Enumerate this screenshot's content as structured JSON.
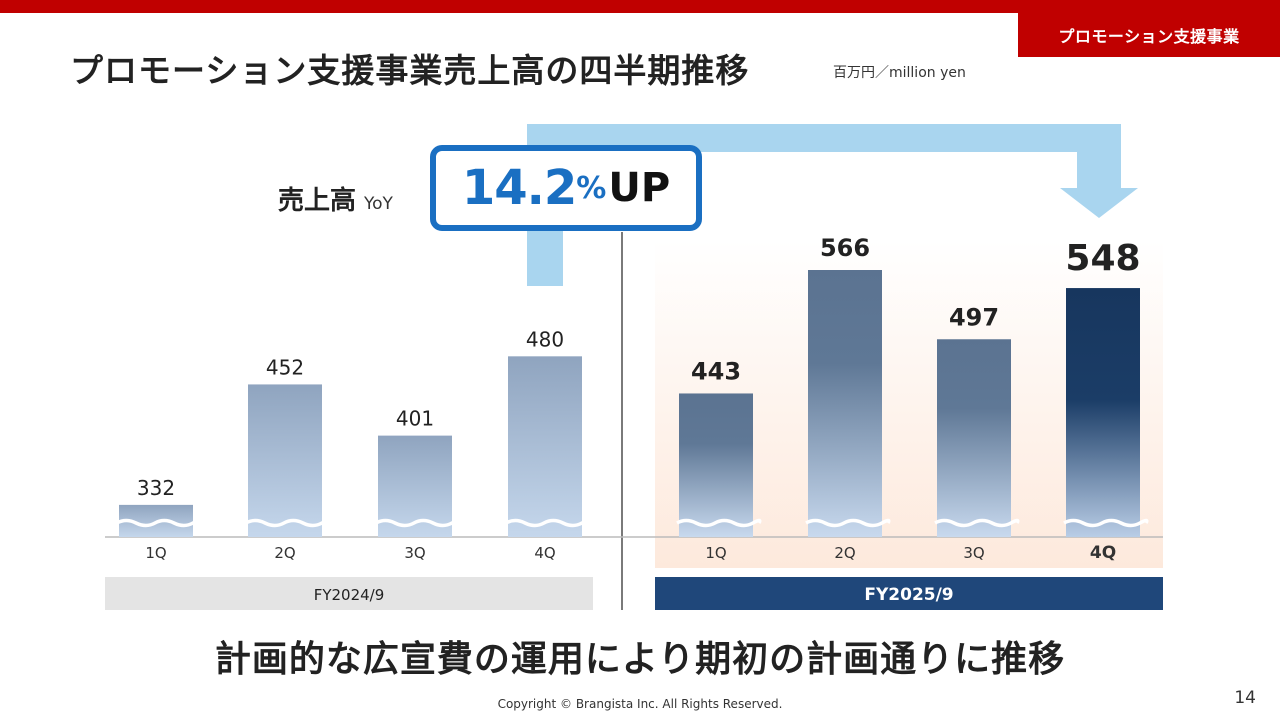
{
  "header": {
    "section_tag": "プロモーション支援事業",
    "title": "プロモーション支援事業売上高の四半期推移",
    "unit": "百万円／million yen"
  },
  "callout": {
    "label": "売上高",
    "label_sub": "YoY",
    "value": "14.2",
    "value_unit": "%",
    "suffix": "UP"
  },
  "chart_data": {
    "type": "bar",
    "unit": "百万円／million yen",
    "groups": [
      {
        "name": "FY2024/9",
        "categories": [
          "1Q",
          "2Q",
          "3Q",
          "4Q"
        ],
        "values": [
          332,
          452,
          401,
          480
        ]
      },
      {
        "name": "FY2025/9",
        "categories": [
          "1Q",
          "2Q",
          "3Q",
          "4Q"
        ],
        "values": [
          443,
          566,
          497,
          548
        ]
      }
    ],
    "highlight": {
      "group": "FY2025/9",
      "category": "4Q"
    },
    "axis_break": true,
    "colors": {
      "fy2024": "#9fb4cf",
      "fy2025": "#5d7592",
      "highlight": "#17365e",
      "fy2025_band": "#1f477a",
      "fy2024_band": "#e4e4e4",
      "arrow": "#a9d5ef"
    }
  },
  "footer": {
    "subtitle": "計画的な広宣費の運用により期初の計画通りに推移",
    "copyright": "Copyright © Brangista Inc. All Rights Reserved.",
    "page": "14"
  }
}
